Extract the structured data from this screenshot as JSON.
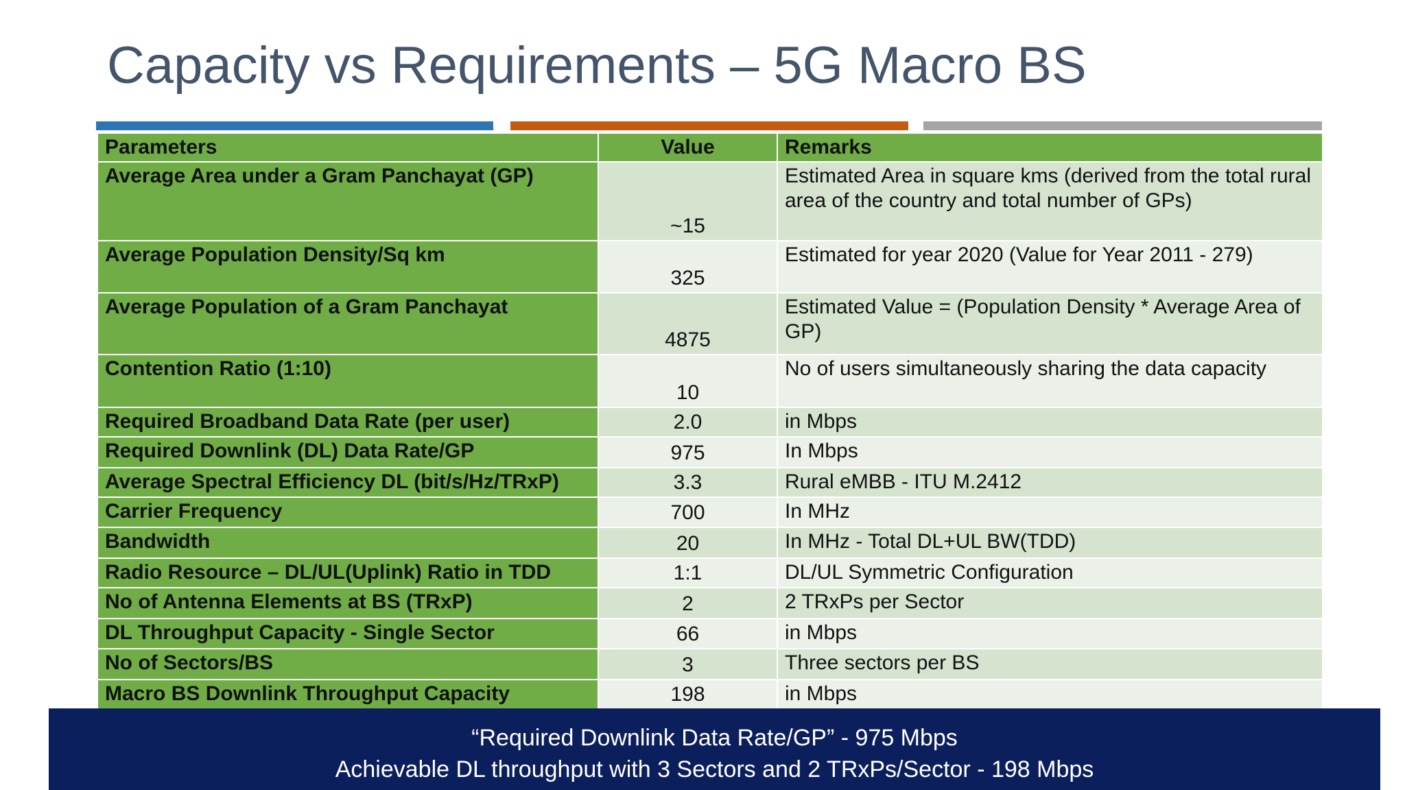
{
  "title": "Capacity vs Requirements – 5G Macro BS",
  "table": {
    "columns": [
      "Parameters",
      "Value",
      "Remarks"
    ],
    "rows": [
      [
        "Average Area under a Gram Panchayat (GP)",
        "~15",
        "Estimated Area in square kms (derived from the total rural area of the country and total number of GPs)"
      ],
      [
        "Average Population Density/Sq km",
        "325",
        "Estimated for year 2020 (Value for Year 2011 - 279)"
      ],
      [
        "Average Population of a Gram Panchayat",
        "4875",
        "Estimated Value = (Population Density * Average Area of GP)"
      ],
      [
        "Contention Ratio (1:10)",
        "10",
        "No of users simultaneously sharing the data capacity"
      ],
      [
        "Required Broadband Data Rate (per user)",
        "2.0",
        "in Mbps"
      ],
      [
        "Required Downlink (DL) Data Rate/GP",
        "975",
        "In Mbps"
      ],
      [
        "Average Spectral Efficiency DL (bit/s/Hz/TRxP)",
        "3.3",
        "Rural eMBB - ITU M.2412"
      ],
      [
        "Carrier Frequency",
        "700",
        "In MHz"
      ],
      [
        "Bandwidth",
        "20",
        "In MHz - Total DL+UL BW(TDD)"
      ],
      [
        "Radio Resource – DL/UL(Uplink) Ratio in TDD",
        "1:1",
        "DL/UL Symmetric Configuration"
      ],
      [
        "No of Antenna Elements at BS (TRxP)",
        "2",
        "2 TRxPs per Sector"
      ],
      [
        "DL Throughput Capacity - Single Sector",
        "66",
        "in Mbps"
      ],
      [
        "No of Sectors/BS",
        "3",
        "Three sectors per BS"
      ],
      [
        "Macro BS Downlink Throughput Capacity",
        "198",
        "in Mbps"
      ]
    ]
  },
  "footer": [
    "“Required Downlink Data Rate/GP”  - 975 Mbps",
    "Achievable DL throughput with 3 Sectors and 2 TRxPs/Sector - 198 Mbps"
  ]
}
